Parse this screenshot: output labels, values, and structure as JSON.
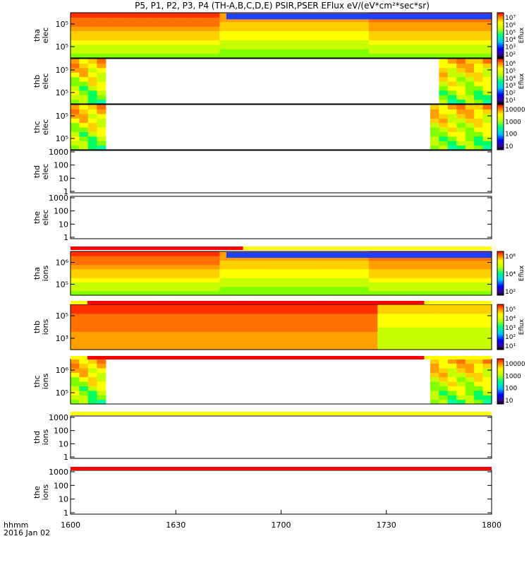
{
  "title": "P5, P1, P2, P3, P4 (TH-A,B,C,D,E) PSIR,PSER EFlux eV/(eV*cm²*sec*sr)",
  "x_axis": {
    "ticks": [
      "1600",
      "1630",
      "1700",
      "1730",
      "1800"
    ],
    "label_left_1": "hhmm",
    "label_left_2": "2016 Jan 02"
  },
  "chart_data": {
    "type": "heatmap",
    "x_range_hhmm": [
      "1600",
      "1800"
    ],
    "panels": [
      {
        "id": "tha-elec",
        "label1": "tha",
        "label2": "elec",
        "data": "spectrogram",
        "yticks": [
          "10⁵",
          "10⁵"
        ],
        "colorbar": {
          "ticks": [
            "10⁷",
            "10⁶",
            "10⁵",
            "10⁴",
            "10³",
            "10²"
          ],
          "label": "Eflux"
        }
      },
      {
        "id": "thb-elec",
        "label1": "thb",
        "label2": "elec",
        "data": "spectrogram",
        "yticks": [
          "10⁵",
          "10⁵"
        ],
        "colorbar": {
          "ticks": [
            "10⁶",
            "10⁵",
            "10⁴",
            "10³",
            "10²",
            "10¹"
          ],
          "label": "Eflux"
        }
      },
      {
        "id": "thc-elec",
        "label1": "thc",
        "label2": "elec",
        "data": "spectrogram",
        "yticks": [
          "10⁵",
          "10⁵"
        ],
        "colorbar": {
          "ticks": [
            "10000",
            "1000",
            "100",
            "10"
          ],
          "label": ""
        }
      },
      {
        "id": "thd-elec",
        "label1": "thd",
        "label2": "elec",
        "data": "empty",
        "yticks": [
          "1000",
          "100",
          "10",
          "1"
        ]
      },
      {
        "id": "the-elec",
        "label1": "the",
        "label2": "elec",
        "data": "empty",
        "yticks": [
          "1000",
          "100",
          "10",
          "1"
        ]
      },
      {
        "id": "tha-ions",
        "label1": "tha",
        "label2": "ions",
        "data": "spectrogram",
        "yticks": [
          "10⁶",
          "10⁵"
        ],
        "colorbar": {
          "ticks": [
            "10⁶",
            "10⁴",
            "10²"
          ],
          "label": "Eflux"
        }
      },
      {
        "id": "thb-ions",
        "label1": "thb",
        "label2": "ions",
        "data": "spectrogram",
        "yticks": [
          "10⁵",
          "10³"
        ],
        "colorbar": {
          "ticks": [
            "10⁵",
            "10⁴",
            "10³",
            "10²",
            "10¹"
          ],
          "label": "Eflux"
        }
      },
      {
        "id": "thc-ions",
        "label1": "thc",
        "label2": "ions",
        "data": "spectrogram",
        "yticks": [
          "10⁶",
          "10⁵"
        ],
        "colorbar": {
          "ticks": [
            "10000",
            "1000",
            "100",
            "10"
          ],
          "label": ""
        }
      },
      {
        "id": "thd-ions",
        "label1": "thd",
        "label2": "ions",
        "data": "empty",
        "yticks": [
          "1000",
          "100",
          "10",
          "1"
        ]
      },
      {
        "id": "the-ions",
        "label1": "the",
        "label2": "ions",
        "data": "empty",
        "yticks": [
          "1000",
          "100",
          "10",
          "1"
        ]
      }
    ],
    "mode_bars": [
      {
        "after_panel": "the-elec",
        "segments": [
          {
            "from": 0.0,
            "to": 0.41,
            "color": "#ff0000"
          },
          {
            "from": 0.41,
            "to": 1.0,
            "color": "#ffff00"
          }
        ]
      },
      {
        "after_panel": "tha-ions",
        "segments": [
          {
            "from": 0.0,
            "to": 0.04,
            "color": "#ffff00"
          },
          {
            "from": 0.04,
            "to": 0.84,
            "color": "#ff0000"
          },
          {
            "from": 0.84,
            "to": 1.0,
            "color": "#ffff00"
          }
        ]
      },
      {
        "after_panel": "thb-ions",
        "segments": [
          {
            "from": 0.0,
            "to": 0.04,
            "color": "#ffff00"
          },
          {
            "from": 0.04,
            "to": 0.84,
            "color": "#ff0000"
          },
          {
            "from": 0.84,
            "to": 1.0,
            "color": "#ffff00"
          }
        ]
      },
      {
        "after_panel": "thc-ions",
        "segments": [
          {
            "from": 0.0,
            "to": 1.0,
            "color": "#ffff00"
          }
        ]
      },
      {
        "after_panel": "thd-ions",
        "segments": [
          {
            "from": 0.0,
            "to": 1.0,
            "color": "#ff0000"
          }
        ]
      }
    ]
  }
}
